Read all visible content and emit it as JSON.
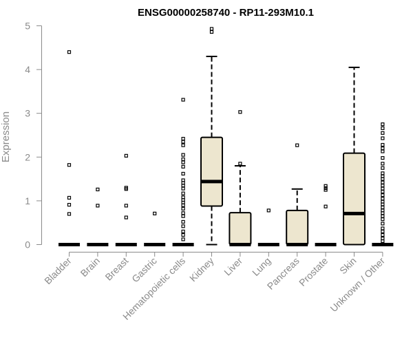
{
  "chart_data": {
    "type": "boxplot",
    "title": "ENSG00000258740 - RP11-293M10.1",
    "xlabel": "",
    "ylabel": "Expression",
    "ylim": [
      0,
      5
    ],
    "yticks": [
      0,
      1,
      2,
      3,
      4,
      5
    ],
    "box_fill": "#ede6cf",
    "categories": [
      "Bladder",
      "Brain",
      "Breast",
      "Gastric",
      "Hematopoietic cells",
      "Kidney",
      "Liver",
      "Lung",
      "Pancreas",
      "Prostate",
      "Skin",
      "Unknown / Other"
    ],
    "boxes": [
      {
        "category": "Bladder",
        "whisker_low": 0,
        "q1": 0,
        "median": 0,
        "q3": 0,
        "whisker_high": 0,
        "outliers": [
          4.4,
          1.82,
          1.07,
          0.91,
          0.7
        ]
      },
      {
        "category": "Brain",
        "whisker_low": 0,
        "q1": 0,
        "median": 0,
        "q3": 0,
        "whisker_high": 0,
        "outliers": [
          1.26,
          0.89
        ]
      },
      {
        "category": "Breast",
        "whisker_low": 0,
        "q1": 0,
        "median": 0,
        "q3": 0,
        "whisker_high": 0,
        "outliers": [
          2.03,
          1.3,
          1.27,
          0.89,
          0.62
        ]
      },
      {
        "category": "Gastric",
        "whisker_low": 0,
        "q1": 0,
        "median": 0,
        "q3": 0,
        "whisker_high": 0,
        "outliers": [
          0.71
        ]
      },
      {
        "category": "Hematopoietic cells",
        "whisker_low": 0,
        "q1": 0,
        "median": 0,
        "q3": 0,
        "whisker_high": 0,
        "outliers": [
          3.31,
          2.42,
          2.35,
          2.27,
          2.05,
          1.95,
          1.88,
          1.78,
          1.62,
          1.47,
          1.41,
          1.35,
          1.28,
          1.17,
          1.08,
          1.02,
          0.96,
          0.9,
          0.82,
          0.72,
          0.65,
          0.52,
          0.42,
          0.3,
          0.22,
          0.12
        ]
      },
      {
        "category": "Kidney",
        "whisker_low": 0,
        "q1": 0.88,
        "median": 1.44,
        "q3": 2.45,
        "whisker_high": 4.3,
        "outliers": [
          4.93,
          4.86
        ]
      },
      {
        "category": "Liver",
        "whisker_low": 0,
        "q1": 0,
        "median": 0,
        "q3": 0.73,
        "whisker_high": 1.8,
        "outliers": [
          3.03,
          1.85
        ]
      },
      {
        "category": "Lung",
        "whisker_low": 0,
        "q1": 0,
        "median": 0,
        "q3": 0,
        "whisker_high": 0,
        "outliers": [
          0.78
        ]
      },
      {
        "category": "Pancreas",
        "whisker_low": 0,
        "q1": 0,
        "median": 0,
        "q3": 0.78,
        "whisker_high": 1.27,
        "outliers": [
          2.27
        ]
      },
      {
        "category": "Prostate",
        "whisker_low": 0,
        "q1": 0,
        "median": 0,
        "q3": 0,
        "whisker_high": 0,
        "outliers": [
          1.34,
          1.29,
          1.25,
          0.87
        ]
      },
      {
        "category": "Skin",
        "whisker_low": 0,
        "q1": 0,
        "median": 0.71,
        "q3": 2.09,
        "whisker_high": 4.05,
        "outliers": []
      },
      {
        "category": "Unknown / Other",
        "whisker_low": 0,
        "q1": 0,
        "median": 0,
        "q3": 0,
        "whisker_high": 0,
        "outliers": [
          2.75,
          2.66,
          2.55,
          2.43,
          2.28,
          2.2,
          2.13,
          1.98,
          1.85,
          1.75,
          1.63,
          1.56,
          1.5,
          1.42,
          1.35,
          1.28,
          1.21,
          1.13,
          1.05,
          0.98,
          0.92,
          0.85,
          0.78,
          0.72,
          0.65,
          0.58,
          0.48,
          0.37,
          0.3,
          0.22,
          0.14,
          0.08
        ]
      }
    ]
  }
}
